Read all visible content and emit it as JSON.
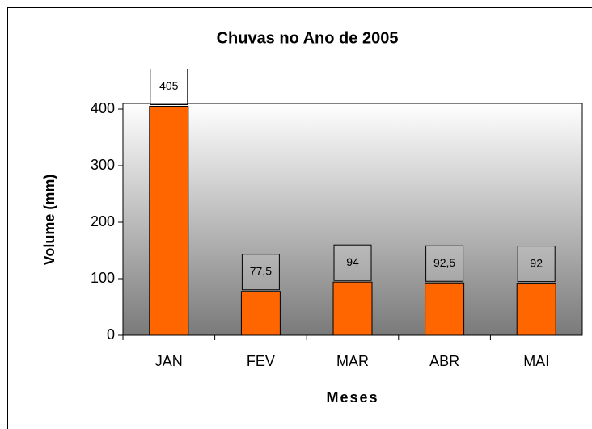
{
  "chart_data": {
    "type": "bar",
    "title": "Chuvas no Ano de 2005",
    "xlabel": "Meses",
    "ylabel": "Volume (mm)",
    "categories": [
      "JAN",
      "FEV",
      "MAR",
      "ABR",
      "MAI"
    ],
    "values": [
      405,
      77.5,
      94,
      92.5,
      92
    ],
    "value_labels": [
      "405",
      "77,5",
      "94",
      "92,5",
      "92"
    ],
    "color": "#ff6600",
    "ylim": [
      0,
      410
    ],
    "yticks": [
      0,
      100,
      200,
      300,
      400
    ]
  }
}
